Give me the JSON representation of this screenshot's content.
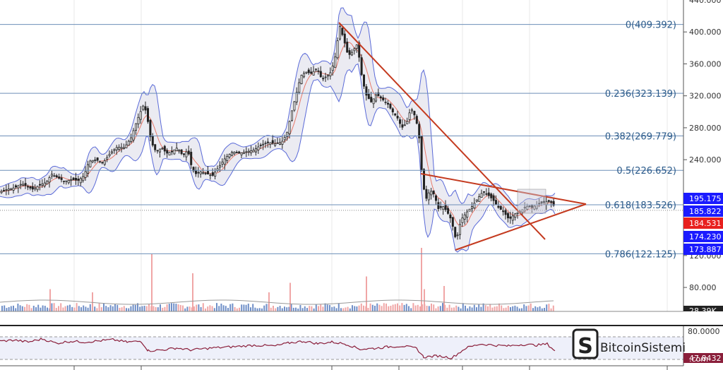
{
  "chart_data": {
    "type": "candlestick",
    "price_axis": {
      "min": 50,
      "max": 440,
      "ticks": [
        "400.000",
        "360.000",
        "320.000",
        "280.000",
        "240.000",
        "120.000",
        "80.000"
      ],
      "tick_values": [
        400,
        360,
        320,
        280,
        240,
        120,
        80
      ],
      "top_partial_label": "440.000"
    },
    "fibonacci_levels": [
      {
        "label": "0(409.392)",
        "value": 409.392
      },
      {
        "label": "0.236(323.139)",
        "value": 323.139
      },
      {
        "label": "0.382(269.779)",
        "value": 269.779
      },
      {
        "label": "0.5(226.652)",
        "value": 226.652
      },
      {
        "label": "0.618(183.526)",
        "value": 183.526
      },
      {
        "label": "0.786(122.125)",
        "value": 122.125
      }
    ],
    "price_tags": [
      {
        "label": "195.175",
        "value": 195.175,
        "color": "#1b1bff"
      },
      {
        "label": "185.822",
        "value": 185.822,
        "color": "#1b1bff"
      },
      {
        "label": "184.531",
        "value": 184.531,
        "color": "#e8201e"
      },
      {
        "label": "174.230",
        "value": 174.23,
        "color": "#1b1bff"
      },
      {
        "label": "173.887",
        "value": 173.887,
        "color": "#1b1bff"
      }
    ],
    "volume_tag": {
      "label": "28.39K",
      "color": "#222222"
    },
    "rsi": {
      "ticks": [
        "80.0000"
      ],
      "bottom_label": "47.8432",
      "upper": 70,
      "lower": 30,
      "value_color": "#8a1e3a"
    },
    "price_series": [
      [
        0,
        200
      ],
      [
        10,
        203
      ],
      [
        20,
        205
      ],
      [
        30,
        210
      ],
      [
        38,
        206
      ],
      [
        45,
        203
      ],
      [
        55,
        208
      ],
      [
        65,
        212
      ],
      [
        72,
        222
      ],
      [
        80,
        218
      ],
      [
        90,
        213
      ],
      [
        100,
        215
      ],
      [
        110,
        214
      ],
      [
        118,
        220
      ],
      [
        125,
        238
      ],
      [
        135,
        240
      ],
      [
        145,
        236
      ],
      [
        155,
        248
      ],
      [
        165,
        256
      ],
      [
        175,
        255
      ],
      [
        185,
        268
      ],
      [
        190,
        282
      ],
      [
        197,
        298
      ],
      [
        203,
        310
      ],
      [
        208,
        290
      ],
      [
        213,
        262
      ],
      [
        220,
        250
      ],
      [
        228,
        255
      ],
      [
        235,
        248
      ],
      [
        242,
        250
      ],
      [
        250,
        255
      ],
      [
        258,
        245
      ],
      [
        265,
        252
      ],
      [
        270,
        232
      ],
      [
        275,
        222
      ],
      [
        283,
        225
      ],
      [
        293,
        222
      ],
      [
        300,
        220
      ],
      [
        308,
        230
      ],
      [
        318,
        242
      ],
      [
        328,
        250
      ],
      [
        338,
        248
      ],
      [
        348,
        250
      ],
      [
        358,
        252
      ],
      [
        368,
        258
      ],
      [
        378,
        262
      ],
      [
        388,
        260
      ],
      [
        398,
        262
      ],
      [
        405,
        272
      ],
      [
        412,
        300
      ],
      [
        418,
        320
      ],
      [
        425,
        345
      ],
      [
        432,
        350
      ],
      [
        440,
        348
      ],
      [
        448,
        355
      ],
      [
        455,
        340
      ],
      [
        462,
        345
      ],
      [
        468,
        350
      ],
      [
        474,
        370
      ],
      [
        480,
        408
      ],
      [
        486,
        390
      ],
      [
        492,
        370
      ],
      [
        498,
        375
      ],
      [
        505,
        385
      ],
      [
        512,
        340
      ],
      [
        518,
        320
      ],
      [
        525,
        312
      ],
      [
        532,
        322
      ],
      [
        540,
        316
      ],
      [
        548,
        310
      ],
      [
        555,
        300
      ],
      [
        562,
        292
      ],
      [
        568,
        280
      ],
      [
        575,
        286
      ],
      [
        581,
        305
      ],
      [
        588,
        292
      ],
      [
        593,
        265
      ],
      [
        597,
        215
      ],
      [
        602,
        190
      ],
      [
        608,
        202
      ],
      [
        614,
        196
      ],
      [
        620,
        178
      ],
      [
        626,
        182
      ],
      [
        632,
        175
      ],
      [
        638,
        165
      ],
      [
        645,
        138
      ],
      [
        652,
        165
      ],
      [
        660,
        174
      ],
      [
        668,
        182
      ],
      [
        676,
        192
      ],
      [
        683,
        200
      ],
      [
        690,
        196
      ],
      [
        697,
        190
      ],
      [
        705,
        180
      ],
      [
        712,
        175
      ],
      [
        720,
        165
      ],
      [
        728,
        172
      ],
      [
        736,
        175
      ],
      [
        744,
        182
      ],
      [
        752,
        180
      ],
      [
        760,
        184
      ],
      [
        768,
        186
      ],
      [
        775,
        188
      ],
      [
        781,
        186
      ],
      [
        786,
        178
      ]
    ],
    "rsi_series": [
      [
        0,
        62
      ],
      [
        20,
        65
      ],
      [
        40,
        60
      ],
      [
        60,
        68
      ],
      [
        80,
        57
      ],
      [
        100,
        62
      ],
      [
        120,
        60
      ],
      [
        140,
        63
      ],
      [
        160,
        66
      ],
      [
        180,
        60
      ],
      [
        200,
        62
      ],
      [
        210,
        38
      ],
      [
        230,
        40
      ],
      [
        250,
        45
      ],
      [
        270,
        40
      ],
      [
        300,
        45
      ],
      [
        330,
        48
      ],
      [
        360,
        52
      ],
      [
        390,
        50
      ],
      [
        410,
        58
      ],
      [
        430,
        62
      ],
      [
        450,
        56
      ],
      [
        470,
        60
      ],
      [
        490,
        55
      ],
      [
        510,
        42
      ],
      [
        530,
        44
      ],
      [
        550,
        48
      ],
      [
        570,
        50
      ],
      [
        590,
        44
      ],
      [
        600,
        22
      ],
      [
        620,
        25
      ],
      [
        640,
        20
      ],
      [
        660,
        45
      ],
      [
        680,
        55
      ],
      [
        700,
        52
      ],
      [
        720,
        50
      ],
      [
        740,
        54
      ],
      [
        760,
        52
      ],
      [
        775,
        55
      ],
      [
        786,
        38
      ]
    ],
    "volume_spikes": [
      {
        "x": 214,
        "h": 0.9
      },
      {
        "x": 272,
        "h": 0.6
      },
      {
        "x": 410,
        "h": 0.45
      },
      {
        "x": 518,
        "h": 0.55
      },
      {
        "x": 596,
        "h": 1.0
      },
      {
        "x": 600,
        "h": 0.35
      },
      {
        "x": 628,
        "h": 0.4
      },
      {
        "x": 70,
        "h": 0.35
      },
      {
        "x": 130,
        "h": 0.3
      },
      {
        "x": 380,
        "h": 0.3
      }
    ],
    "trendlines": [
      {
        "name": "descending-trendline",
        "color": "#c43a1f",
        "x1": 480,
        "y1": 32,
        "x2": 772,
        "y2": 339
      },
      {
        "name": "triangle-upper",
        "color": "#c43a1f",
        "x1": 596,
        "y1": 246,
        "x2": 830,
        "y2": 289
      },
      {
        "name": "triangle-lower",
        "color": "#c43a1f",
        "x1": 645,
        "y1": 354,
        "x2": 830,
        "y2": 289
      }
    ]
  },
  "branding": {
    "text": "BitcoinSistemi",
    "suffix": ".com"
  }
}
